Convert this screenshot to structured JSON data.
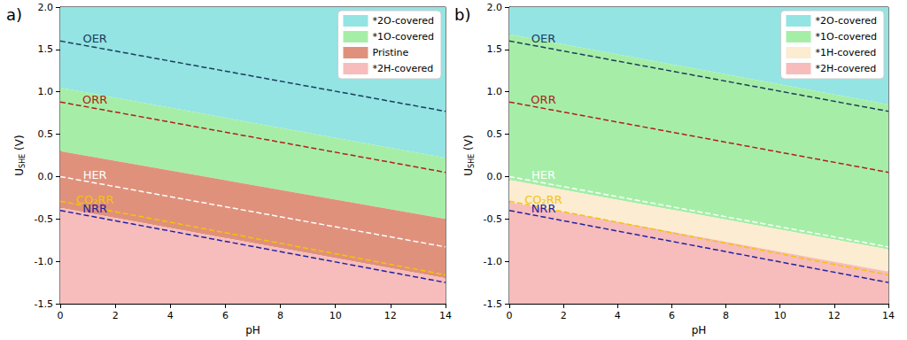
{
  "chart_data": [
    {
      "type": "line",
      "title": "a)",
      "xlabel": "pH",
      "ylabel": "USHE (V)",
      "xlim": [
        0,
        14
      ],
      "ylim": [
        -1.5,
        2.0
      ],
      "xticks": [
        0,
        2,
        4,
        6,
        8,
        10,
        12,
        14
      ],
      "yticks": [
        -1.5,
        {
          "value": -1.0,
          "label": "-1.0"
        },
        -0.5,
        {
          "value": 0,
          "label": "0.0"
        },
        0.5,
        {
          "value": 1.0,
          "label": "1.0"
        },
        1.5,
        {
          "value": 2.0,
          "label": "2.0"
        }
      ],
      "legend": "upper right",
      "regions": [
        {
          "name": "*2O-covered",
          "color": "#93e4e3",
          "x": [
            0,
            14
          ],
          "lower": [
            1.05,
            0.22
          ],
          "upper": [
            2.0,
            2.0
          ]
        },
        {
          "name": "*1O-covered",
          "color": "#a6eea8",
          "x": [
            0,
            14
          ],
          "lower": [
            0.3,
            -0.5
          ],
          "upper": [
            1.05,
            0.22
          ]
        },
        {
          "name": "Pristine",
          "color": "#e0917c",
          "x": [
            0,
            14
          ],
          "lower": [
            -0.37,
            -1.2
          ],
          "upper": [
            0.3,
            -0.5
          ]
        },
        {
          "name": "*2H-covered",
          "color": "#f7bcbc",
          "x": [
            0,
            14
          ],
          "lower": [
            -1.5,
            -1.5
          ],
          "upper": [
            -0.37,
            -1.2
          ]
        }
      ],
      "series": [
        {
          "name": "OER",
          "color": "#1c3d5a",
          "line_style": "dashed",
          "x": [
            0,
            14
          ],
          "values": [
            1.6,
            0.77
          ]
        },
        {
          "name": "ORR",
          "color": "#b0201c",
          "line_style": "dashed",
          "x": [
            0,
            14
          ],
          "values": [
            0.88,
            0.05
          ]
        },
        {
          "name": "HER",
          "color": "#ffffff",
          "line_style": "dashed",
          "x": [
            0,
            14
          ],
          "values": [
            0,
            -0.83
          ]
        },
        {
          "name": "CO₂RR",
          "color": "#f5c400",
          "line_style": "dashed",
          "x": [
            0,
            14
          ],
          "values": [
            -0.29,
            -1.16
          ]
        },
        {
          "name": "NRR",
          "color": "#1f259e",
          "line_style": "dashed",
          "x": [
            0,
            14
          ],
          "values": [
            -0.4,
            -1.25
          ]
        }
      ]
    },
    {
      "type": "line",
      "title": "b)",
      "xlabel": "pH",
      "ylabel": "USHE (V)",
      "xlim": [
        0,
        14
      ],
      "ylim": [
        -1.5,
        2.0
      ],
      "xticks": [
        0,
        2,
        4,
        6,
        8,
        10,
        12,
        14
      ],
      "yticks": [
        -1.5,
        {
          "value": -1.0,
          "label": "-1.0"
        },
        -0.5,
        {
          "value": 0,
          "label": "0.0"
        },
        0.5,
        {
          "value": 1.0,
          "label": "1.0"
        },
        1.5,
        {
          "value": 2.0,
          "label": "2.0"
        }
      ],
      "legend": "upper right",
      "regions": [
        {
          "name": "*2O-covered",
          "color": "#93e4e3",
          "x": [
            0,
            14
          ],
          "lower": [
            1.68,
            0.85
          ],
          "upper": [
            2.0,
            2.0
          ]
        },
        {
          "name": "*1O-covered",
          "color": "#a6eea8",
          "x": [
            0,
            14
          ],
          "lower": [
            -0.04,
            -0.86
          ],
          "upper": [
            1.68,
            0.85
          ]
        },
        {
          "name": "*1H-covered",
          "color": "#fcecd2",
          "x": [
            0,
            14
          ],
          "lower": [
            -0.3,
            -1.12
          ],
          "upper": [
            -0.04,
            -0.86
          ]
        },
        {
          "name": "*2H-covered",
          "color": "#f7bcbc",
          "x": [
            0,
            14
          ],
          "lower": [
            -1.5,
            -1.5
          ],
          "upper": [
            -0.3,
            -1.12
          ]
        }
      ],
      "series": [
        {
          "name": "OER",
          "color": "#1c3d5a",
          "line_style": "dashed",
          "x": [
            0,
            14
          ],
          "values": [
            1.6,
            0.77
          ]
        },
        {
          "name": "ORR",
          "color": "#b0201c",
          "line_style": "dashed",
          "x": [
            0,
            14
          ],
          "values": [
            0.88,
            0.05
          ]
        },
        {
          "name": "HER",
          "color": "#ffffff",
          "line_style": "dashed",
          "x": [
            0,
            14
          ],
          "values": [
            0,
            -0.83
          ]
        },
        {
          "name": "CO₂RR",
          "color": "#f5c400",
          "line_style": "dashed",
          "x": [
            0,
            14
          ],
          "values": [
            -0.29,
            -1.16
          ]
        },
        {
          "name": "NRR",
          "color": "#1f259e",
          "line_style": "dashed",
          "x": [
            0,
            14
          ],
          "values": [
            -0.4,
            -1.25
          ]
        }
      ]
    }
  ]
}
